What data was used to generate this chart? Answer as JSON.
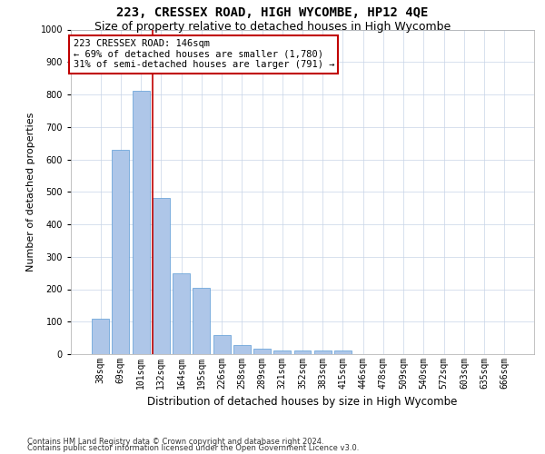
{
  "title": "223, CRESSEX ROAD, HIGH WYCOMBE, HP12 4QE",
  "subtitle": "Size of property relative to detached houses in High Wycombe",
  "xlabel": "Distribution of detached houses by size in High Wycombe",
  "ylabel": "Number of detached properties",
  "footer_line1": "Contains HM Land Registry data © Crown copyright and database right 2024.",
  "footer_line2": "Contains public sector information licensed under the Open Government Licence v3.0.",
  "categories": [
    "38sqm",
    "69sqm",
    "101sqm",
    "132sqm",
    "164sqm",
    "195sqm",
    "226sqm",
    "258sqm",
    "289sqm",
    "321sqm",
    "352sqm",
    "383sqm",
    "415sqm",
    "446sqm",
    "478sqm",
    "509sqm",
    "540sqm",
    "572sqm",
    "603sqm",
    "635sqm",
    "666sqm"
  ],
  "values": [
    110,
    630,
    810,
    480,
    250,
    205,
    60,
    28,
    18,
    10,
    10,
    10,
    10,
    0,
    0,
    0,
    0,
    0,
    0,
    0,
    0
  ],
  "bar_color": "#aec6e8",
  "bar_edge_color": "#5b9bd5",
  "vline_color": "#c00000",
  "vline_x_index": 3,
  "annotation_text": "223 CRESSEX ROAD: 146sqm\n← 69% of detached houses are smaller (1,780)\n31% of semi-detached houses are larger (791) →",
  "annotation_box_color": "white",
  "annotation_box_edge_color": "#c00000",
  "ylim": [
    0,
    1000
  ],
  "yticks": [
    0,
    100,
    200,
    300,
    400,
    500,
    600,
    700,
    800,
    900,
    1000
  ],
  "background_color": "#ffffff",
  "grid_color": "#c8d4e8"
}
